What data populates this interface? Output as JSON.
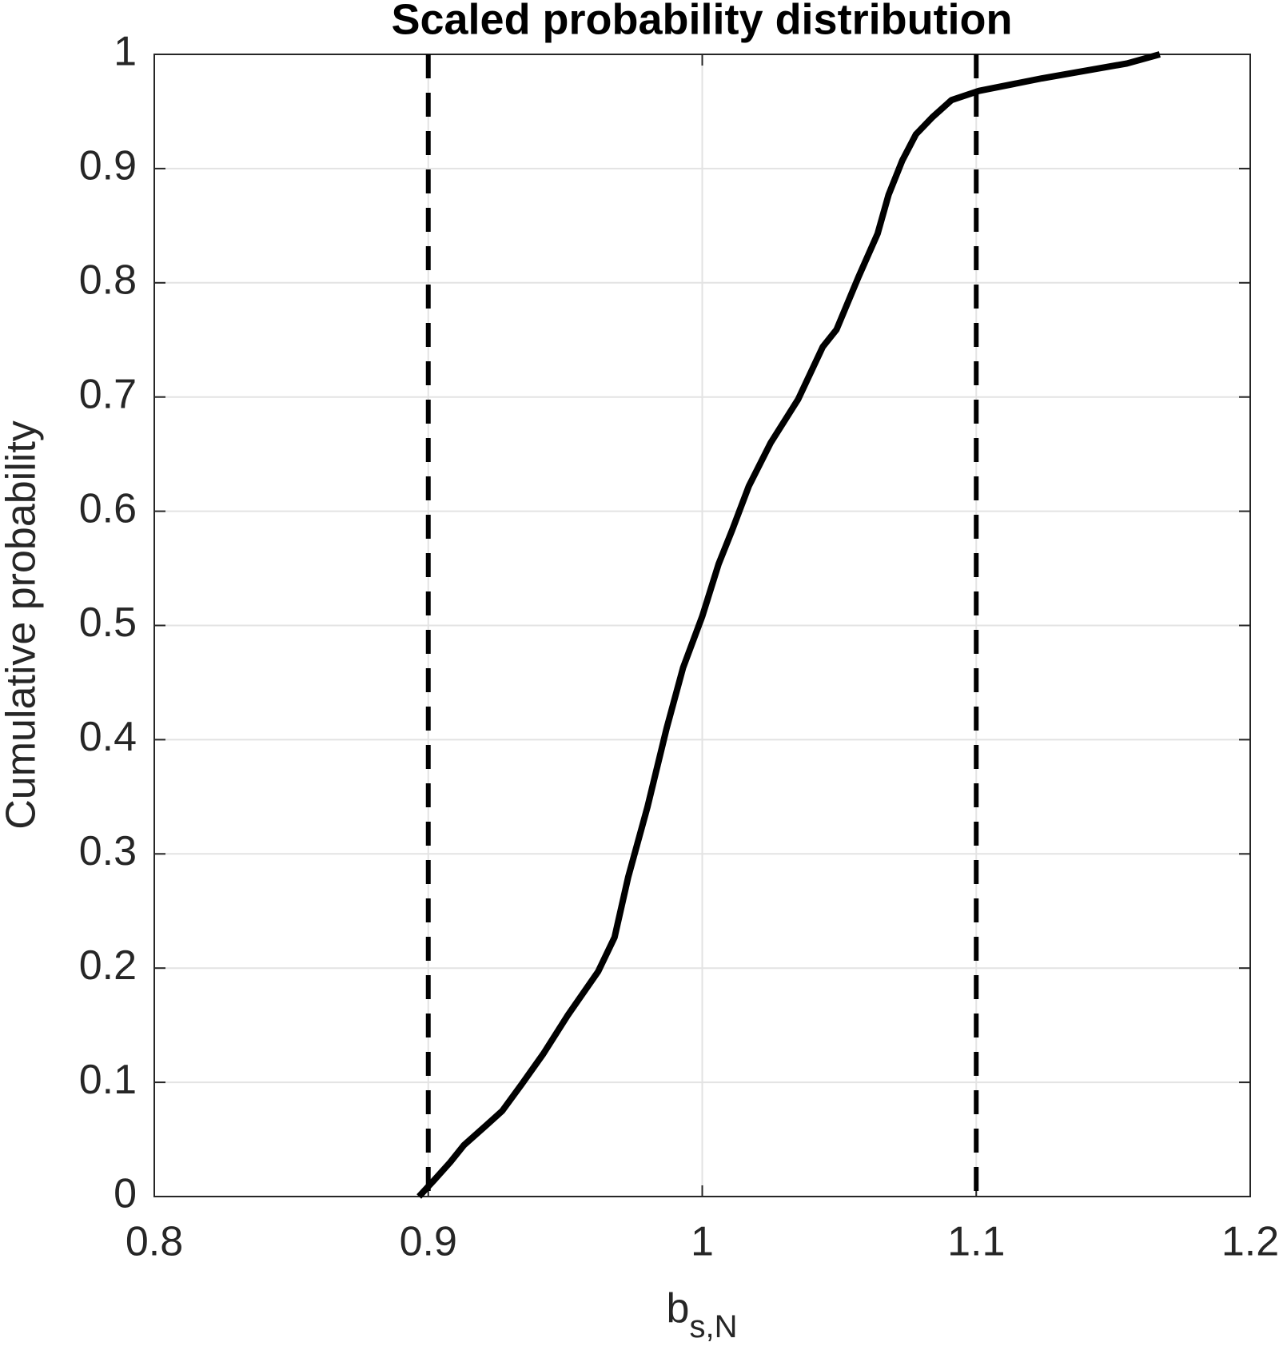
{
  "chart_data": {
    "type": "line",
    "title": "Scaled probability distribution",
    "xlabel": {
      "base": "b",
      "subscript": "s,N"
    },
    "ylabel": "Cumulative probability",
    "series": [
      {
        "color": "#000000",
        "x": [
          0.8966,
          0.902,
          0.908,
          0.913,
          0.921,
          0.927,
          0.934,
          0.942,
          0.951,
          0.962,
          0.968,
          0.973,
          0.98,
          0.987,
          0.993,
          1.0,
          1.006,
          1.011,
          1.017,
          1.025,
          1.035,
          1.044,
          1.049,
          1.057,
          1.064,
          1.068,
          1.073,
          1.078,
          1.084,
          1.091,
          1.101,
          1.124,
          1.155,
          1.167
        ],
        "values": [
          0,
          0.014,
          0.03,
          0.045,
          0.062,
          0.075,
          0.098,
          0.125,
          0.159,
          0.197,
          0.227,
          0.28,
          0.341,
          0.41,
          0.463,
          0.508,
          0.554,
          0.584,
          0.622,
          0.66,
          0.698,
          0.744,
          0.759,
          0.805,
          0.843,
          0.877,
          0.907,
          0.93,
          0.945,
          0.96,
          0.968,
          0.979,
          0.992,
          1.0
        ]
      }
    ],
    "vlines": [
      0.9,
      1.1
    ],
    "xlim": [
      0.8,
      1.2
    ],
    "xticks": [
      0.8,
      0.9,
      1,
      1.1,
      1.2
    ],
    "ylim": [
      0,
      1
    ],
    "yticks": [
      0,
      0.1,
      0.2,
      0.3,
      0.4,
      0.5,
      0.6,
      0.7,
      0.8,
      0.9,
      1
    ],
    "grid": true
  }
}
